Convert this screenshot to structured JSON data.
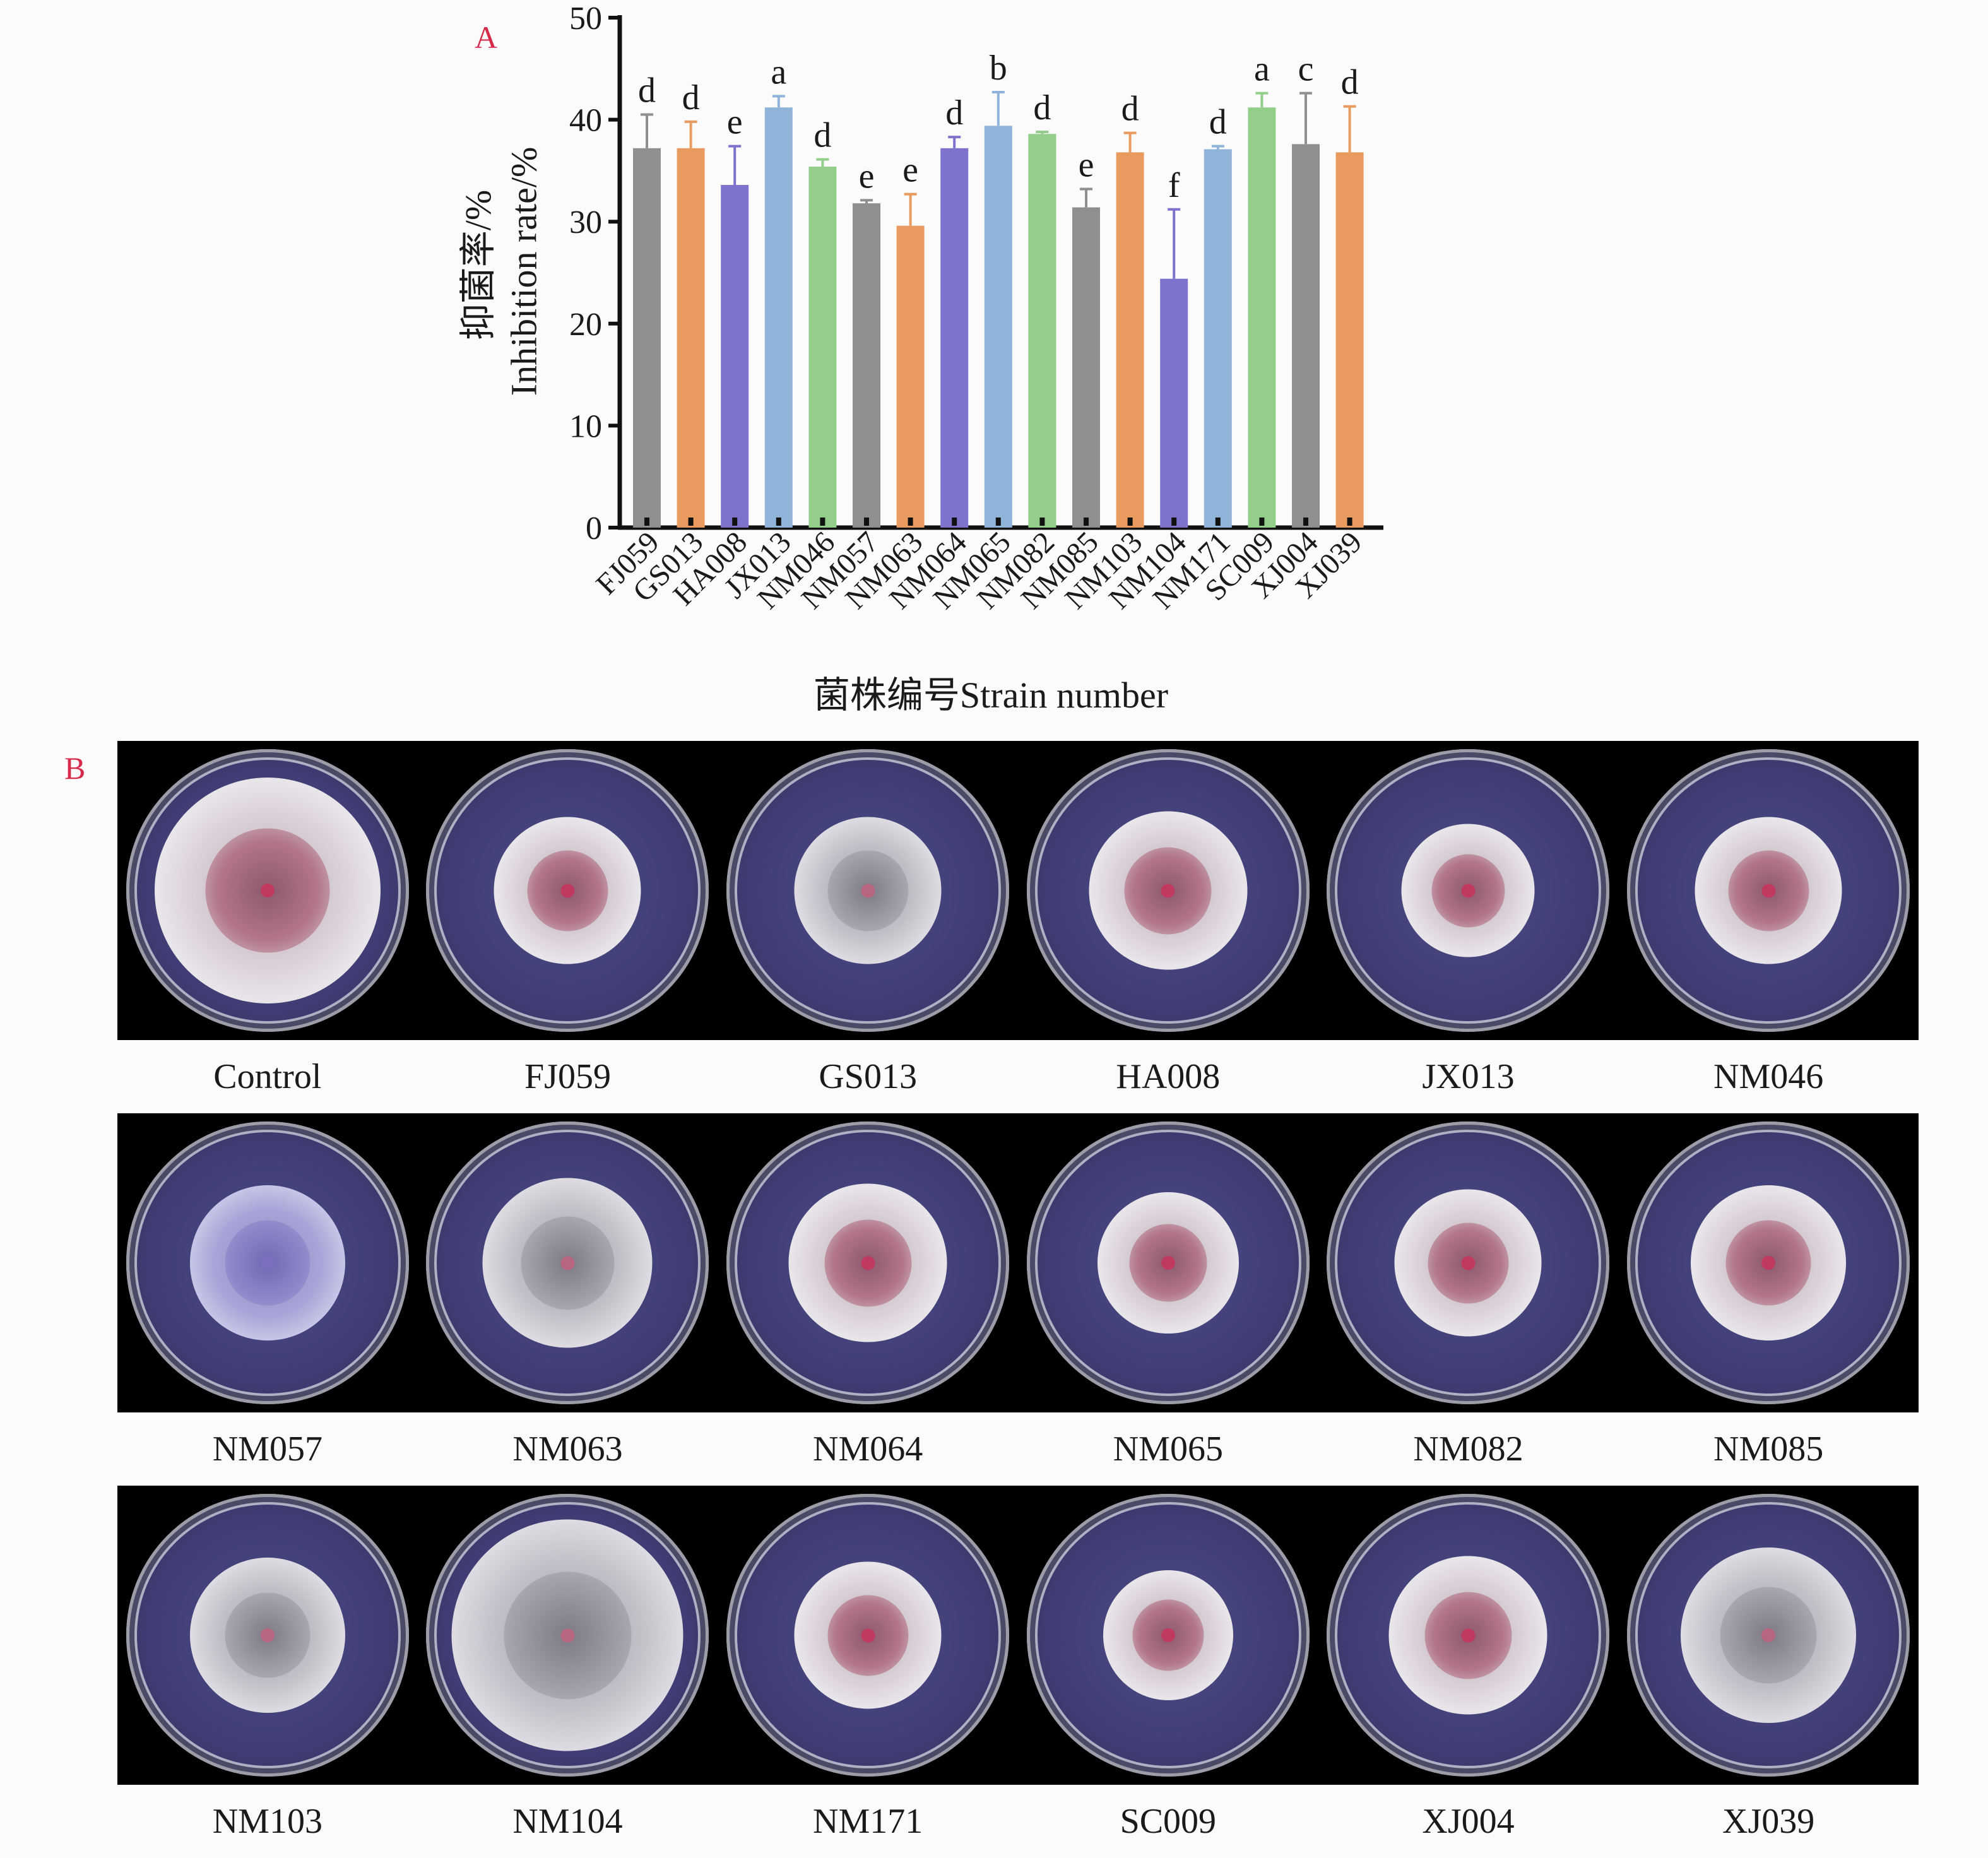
{
  "panel_a_label": "A",
  "panel_b_label": "B",
  "chart_data": {
    "type": "bar",
    "ylabel_cn": "抑菌率/%",
    "ylabel_en": "Inhibition rate/%",
    "xlabel": "菌株编号Strain number",
    "ylim": [
      0,
      50
    ],
    "yticks": [
      0,
      10,
      20,
      30,
      40,
      50
    ],
    "categories": [
      "FJ059",
      "GS013",
      "HA008",
      "JX013",
      "NM046",
      "NM057",
      "NM063",
      "NM064",
      "NM065",
      "NM082",
      "NM085",
      "NM103",
      "NM104",
      "NM171",
      "SC009",
      "XJ004",
      "XJ039"
    ],
    "values": [
      37.2,
      37.2,
      33.6,
      41.2,
      35.4,
      31.8,
      29.6,
      37.2,
      39.4,
      38.6,
      31.4,
      36.8,
      24.4,
      37.1,
      41.2,
      37.6,
      36.8
    ],
    "errors": [
      3.3,
      2.6,
      3.8,
      1.1,
      0.7,
      0.3,
      3.1,
      1.1,
      3.3,
      0.2,
      1.8,
      1.9,
      6.8,
      0.3,
      1.4,
      5.0,
      4.5
    ],
    "letters": [
      "d",
      "d",
      "e",
      "a",
      "d",
      "e",
      "e",
      "d",
      "b",
      "d",
      "e",
      "d",
      "f",
      "d",
      "a",
      "c",
      "d"
    ],
    "colors": [
      "#8f8f8f",
      "#e89a5f",
      "#7d72cc",
      "#8fb3d9",
      "#93cf8b",
      "#8f8f8f",
      "#e89a5f",
      "#7d72cc",
      "#8fb3d9",
      "#93cf8b",
      "#8f8f8f",
      "#e89a5f",
      "#7d72cc",
      "#8fb3d9",
      "#93cf8b",
      "#8f8f8f",
      "#e89a5f"
    ]
  },
  "plates": [
    {
      "label": "Control",
      "colony": "white-pink",
      "colony_size": 0.8
    },
    {
      "label": "FJ059",
      "colony": "white-pink",
      "colony_size": 0.52
    },
    {
      "label": "GS013",
      "colony": "white-grey",
      "colony_size": 0.52
    },
    {
      "label": "HA008",
      "colony": "white-pink",
      "colony_size": 0.56
    },
    {
      "label": "JX013",
      "colony": "white-pink",
      "colony_size": 0.47
    },
    {
      "label": "NM046",
      "colony": "white-pink",
      "colony_size": 0.52
    },
    {
      "label": "NM057",
      "colony": "lavender",
      "colony_size": 0.55
    },
    {
      "label": "NM063",
      "colony": "white-grey",
      "colony_size": 0.6
    },
    {
      "label": "NM064",
      "colony": "white-pink",
      "colony_size": 0.56
    },
    {
      "label": "NM065",
      "colony": "white-pink",
      "colony_size": 0.5
    },
    {
      "label": "NM082",
      "colony": "white-pink",
      "colony_size": 0.52
    },
    {
      "label": "NM085",
      "colony": "white-pink",
      "colony_size": 0.55
    },
    {
      "label": "NM103",
      "colony": "white-grey",
      "colony_size": 0.55
    },
    {
      "label": "NM104",
      "colony": "white-grey",
      "colony_size": 0.82
    },
    {
      "label": "NM171",
      "colony": "white-pink",
      "colony_size": 0.52
    },
    {
      "label": "SC009",
      "colony": "white-pink",
      "colony_size": 0.46
    },
    {
      "label": "XJ004",
      "colony": "white-pink",
      "colony_size": 0.56
    },
    {
      "label": "XJ039",
      "colony": "white-grey",
      "colony_size": 0.62
    }
  ]
}
